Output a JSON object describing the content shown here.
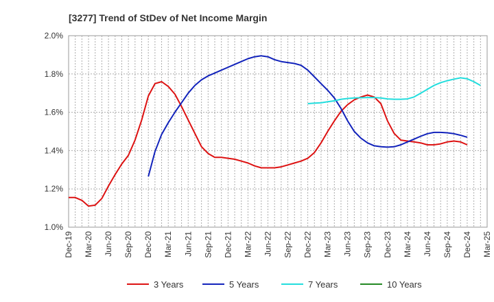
{
  "chart_data": {
    "type": "line",
    "title": "[3277]  Trend of StDev of Net Income Margin",
    "xlabel": "",
    "ylabel": "",
    "ylim": [
      1.0,
      2.0
    ],
    "yticks": [
      "1.0%",
      "1.2%",
      "1.4%",
      "1.6%",
      "1.8%",
      "2.0%"
    ],
    "ytick_values": [
      1.0,
      1.2,
      1.4,
      1.6,
      1.8,
      2.0
    ],
    "xticks": [
      "Dec-19",
      "Mar-20",
      "Jun-20",
      "Sep-20",
      "Dec-20",
      "Mar-21",
      "Jun-21",
      "Sep-21",
      "Dec-21",
      "Mar-22",
      "Jun-22",
      "Sep-22",
      "Dec-22",
      "Mar-23",
      "Jun-23",
      "Sep-23",
      "Dec-23",
      "Mar-24",
      "Jun-24",
      "Sep-24",
      "Dec-24",
      "Mar-25"
    ],
    "grid": true,
    "legend_position": "bottom",
    "series": [
      {
        "name": "3 Years",
        "color": "#dd1111",
        "start_month": 0,
        "values": [
          1.155,
          1.155,
          1.14,
          1.11,
          1.115,
          1.15,
          1.215,
          1.275,
          1.33,
          1.375,
          1.455,
          1.56,
          1.685,
          1.75,
          1.76,
          1.735,
          1.695,
          1.63,
          1.56,
          1.49,
          1.42,
          1.385,
          1.365,
          1.365,
          1.36,
          1.355,
          1.345,
          1.335,
          1.32,
          1.31,
          1.31,
          1.31,
          1.315,
          1.325,
          1.335,
          1.345,
          1.36,
          1.39,
          1.44,
          1.5,
          1.555,
          1.605,
          1.64,
          1.665,
          1.68,
          1.69,
          1.68,
          1.645,
          1.555,
          1.49,
          1.455,
          1.45,
          1.445,
          1.44,
          1.43,
          1.43,
          1.435,
          1.445,
          1.45,
          1.445,
          1.43
        ]
      },
      {
        "name": "5 Years",
        "color": "#1122bb",
        "start_month": 12,
        "values": [
          1.265,
          1.395,
          1.485,
          1.545,
          1.6,
          1.65,
          1.7,
          1.74,
          1.77,
          1.79,
          1.805,
          1.82,
          1.835,
          1.85,
          1.865,
          1.88,
          1.89,
          1.895,
          1.89,
          1.875,
          1.865,
          1.86,
          1.855,
          1.845,
          1.82,
          1.785,
          1.75,
          1.715,
          1.675,
          1.62,
          1.555,
          1.5,
          1.465,
          1.44,
          1.425,
          1.42,
          1.418,
          1.42,
          1.43,
          1.445,
          1.46,
          1.475,
          1.488,
          1.495,
          1.495,
          1.493,
          1.488,
          1.48,
          1.47
        ]
      },
      {
        "name": "7 Years",
        "color": "#22dddd",
        "start_month": 36,
        "values": [
          1.645,
          1.648,
          1.65,
          1.655,
          1.66,
          1.668,
          1.672,
          1.675,
          1.676,
          1.677,
          1.677,
          1.675,
          1.67,
          1.668,
          1.668,
          1.67,
          1.68,
          1.7,
          1.72,
          1.74,
          1.755,
          1.765,
          1.773,
          1.78,
          1.775,
          1.76,
          1.74
        ]
      },
      {
        "name": "10 Years",
        "color": "#228822",
        "start_month": 0,
        "values": []
      }
    ]
  }
}
